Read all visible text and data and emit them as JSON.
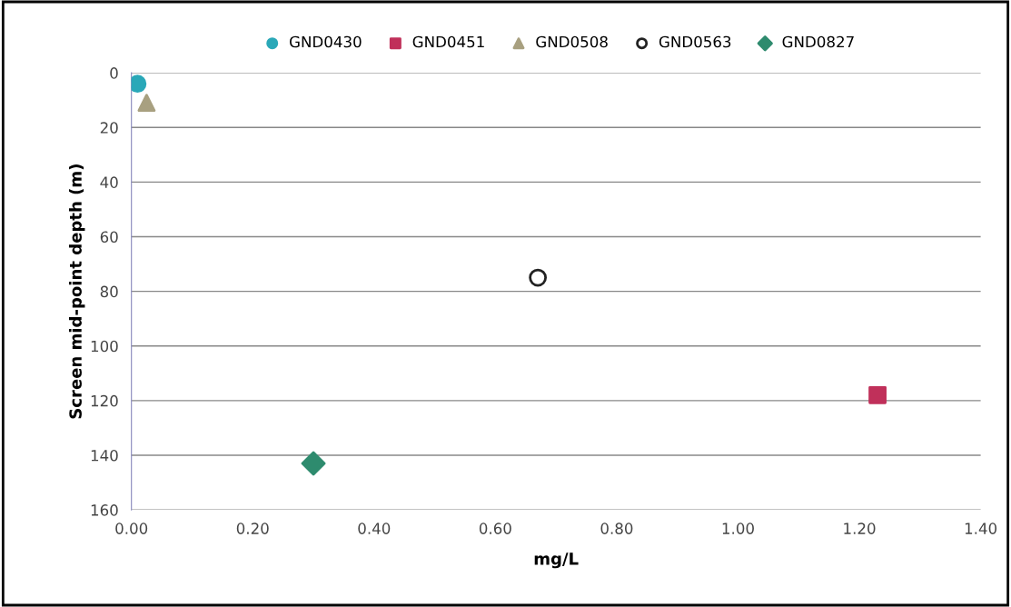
{
  "chart_data": {
    "type": "scatter",
    "xlabel": "mg/L",
    "ylabel": "Screen mid-point depth (m)",
    "xlim": [
      0,
      1.4
    ],
    "xticks": [
      {
        "value": 0,
        "label": "0.00"
      },
      {
        "value": 0.2,
        "label": "0.20"
      },
      {
        "value": 0.4,
        "label": "0.40"
      },
      {
        "value": 0.6,
        "label": "0.60"
      },
      {
        "value": 0.8,
        "label": "0.80"
      },
      {
        "value": 1.0,
        "label": "1.00"
      },
      {
        "value": 1.2,
        "label": "1.20"
      },
      {
        "value": 1.4,
        "label": "1.40"
      }
    ],
    "ylim": [
      160,
      0
    ],
    "yticks": [
      0,
      20,
      40,
      60,
      80,
      100,
      120,
      140,
      160
    ],
    "grid": "y",
    "legend": "top",
    "series": [
      {
        "name": "GND0430",
        "color": "#2aa8b8",
        "marker": "circle",
        "x": [
          0.01
        ],
        "values": [
          4
        ]
      },
      {
        "name": "GND0451",
        "color": "#c0305a",
        "marker": "square",
        "x": [
          1.23
        ],
        "values": [
          118
        ]
      },
      {
        "name": "GND0508",
        "color": "#a8a080",
        "marker": "triangle",
        "x": [
          0.025
        ],
        "values": [
          11
        ]
      },
      {
        "name": "GND0563",
        "color": "#222222",
        "marker": "open circle",
        "x": [
          0.67
        ],
        "values": [
          75
        ]
      },
      {
        "name": "GND0827",
        "color": "#2e8b6e",
        "marker": "diamond",
        "x": [
          0.3
        ],
        "values": [
          143
        ]
      }
    ]
  }
}
